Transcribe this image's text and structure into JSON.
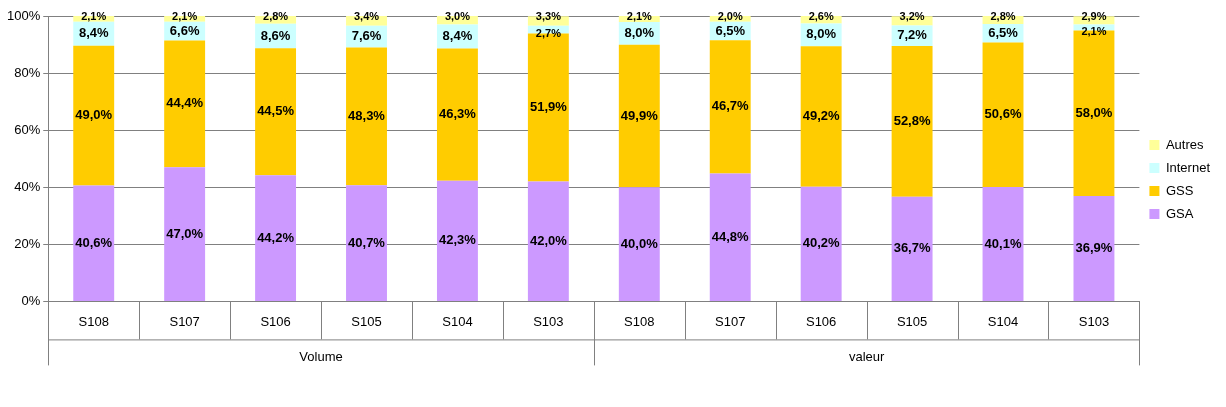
{
  "chart_data": {
    "type": "bar",
    "stacked": true,
    "categories": [
      "S108",
      "S107",
      "S106",
      "S105",
      "S104",
      "S103",
      "S108",
      "S107",
      "S106",
      "S105",
      "S104",
      "S103"
    ],
    "series": [
      {
        "name": "GSA",
        "color": "#cc99ff",
        "values": [
          40.6,
          47.0,
          44.2,
          40.7,
          42.3,
          42.0,
          40.0,
          44.8,
          40.2,
          36.7,
          40.1,
          36.9
        ],
        "value_labels": [
          "40,6%",
          "47,0%",
          "44,2%",
          "40,7%",
          "42,3%",
          "42,0%",
          "40,0%",
          "44,8%",
          "40,2%",
          "36,7%",
          "40,1%",
          "36,9%"
        ]
      },
      {
        "name": "GSS",
        "color": "#ffcc00",
        "values": [
          49.0,
          44.4,
          44.5,
          48.3,
          46.3,
          51.9,
          49.9,
          46.7,
          49.2,
          52.8,
          50.6,
          58.0
        ],
        "value_labels": [
          "49,0%",
          "44,4%",
          "44,5%",
          "48,3%",
          "46,3%",
          "51,9%",
          "49,9%",
          "46,7%",
          "49,2%",
          "52,8%",
          "50,6%",
          "58,0%"
        ]
      },
      {
        "name": "Internet",
        "color": "#ccffff",
        "values": [
          8.4,
          6.6,
          8.6,
          7.6,
          8.4,
          2.7,
          8.0,
          6.5,
          8.0,
          7.2,
          6.5,
          2.1
        ],
        "value_labels": [
          "8,4%",
          "6,6%",
          "8,6%",
          "7,6%",
          "8,4%",
          "2,7%",
          "8,0%",
          "6,5%",
          "8,0%",
          "7,2%",
          "6,5%",
          "2,1%"
        ]
      },
      {
        "name": "Autres",
        "color": "#ffff99",
        "values": [
          2.1,
          2.1,
          2.8,
          3.4,
          3.0,
          3.3,
          2.1,
          2.0,
          2.6,
          3.2,
          2.8,
          2.9
        ],
        "value_labels": [
          "2,1%",
          "2,1%",
          "2,8%",
          "3,4%",
          "3,0%",
          "3,3%",
          "2,1%",
          "2,0%",
          "2,6%",
          "3,2%",
          "2,8%",
          "2,9%"
        ]
      }
    ],
    "ylim": [
      0,
      100
    ],
    "yticks": [
      {
        "value": 0,
        "label": "0%"
      },
      {
        "value": 20,
        "label": "20%"
      },
      {
        "value": 40,
        "label": "40%"
      },
      {
        "value": 60,
        "label": "60%"
      },
      {
        "value": 80,
        "label": "80%"
      },
      {
        "value": 100,
        "label": "100%"
      }
    ],
    "grid": "y",
    "legend": "right",
    "annotations": [
      "Volume",
      "valeur"
    ]
  }
}
